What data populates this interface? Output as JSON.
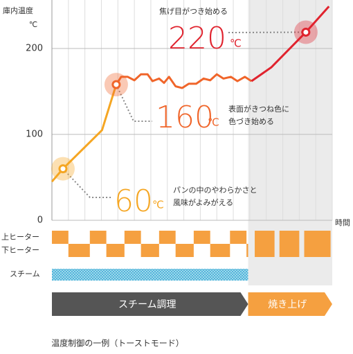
{
  "y_label": "庫内温度",
  "y_unit": "℃",
  "x_label": "時間",
  "caption": "温度制御の一例（トーストモード）",
  "chart_data": {
    "type": "line",
    "ylim": [
      0,
      250
    ],
    "yticks": [
      0,
      100,
      200
    ],
    "xlim": [
      0,
      17
    ],
    "grid": true,
    "series": [
      {
        "color": "#f5a623",
        "x": [
          0,
          0.67,
          3.04,
          3.9
        ],
        "values": [
          45,
          60,
          105,
          158
        ]
      },
      {
        "color": "#f0652a",
        "x": [
          3.9,
          4.2,
          4.6,
          5.0,
          5.4,
          5.8,
          6.1,
          6.5,
          6.8,
          7.1,
          7.5,
          7.9,
          8.3,
          8.75,
          9.2,
          9.6,
          10,
          10.4,
          10.85,
          11.25,
          11.7,
          12.1
        ],
        "values": [
          158,
          167,
          167,
          163,
          170,
          170,
          162,
          165,
          160,
          167,
          156,
          154,
          159,
          159,
          165,
          163,
          170,
          165,
          167,
          162,
          167,
          162
        ]
      },
      {
        "color": "#e0232e",
        "x": [
          12.1,
          13.3,
          15.4,
          16.8
        ],
        "values": [
          162,
          178,
          219,
          249
        ]
      }
    ],
    "annotations": [
      {
        "x": 0.67,
        "y": 60,
        "label": "60",
        "unit": "℃",
        "color": "#f5a623",
        "text": [
          "パンの中のやわらかさと",
          "風味がよみがえる"
        ]
      },
      {
        "x": 3.9,
        "y": 158,
        "label": "160",
        "unit": "℃",
        "color": "#f0652a",
        "text": [
          "表面がきつね色に",
          "色づき始める"
        ]
      },
      {
        "x": 15.4,
        "y": 219,
        "label": "220",
        "unit": "℃",
        "color": "#e0232e",
        "text": [
          "焦げ目がつき始める"
        ]
      }
    ],
    "heaters": [
      {
        "label": "上ヒーター",
        "on": [
          [
            0,
            1
          ],
          [
            2.3,
            3.3
          ],
          [
            4.4,
            5.4
          ],
          [
            6.5,
            7.5
          ],
          [
            8.6,
            9.6
          ],
          [
            10.8,
            11.8
          ]
        ]
      },
      {
        "label": "下ヒーター",
        "on": [
          [
            1,
            2.3
          ],
          [
            3.3,
            4.4
          ],
          [
            5.4,
            6.5
          ],
          [
            7.5,
            8.6
          ],
          [
            9.6,
            10.8
          ],
          [
            11.8,
            11.9
          ]
        ]
      }
    ],
    "heater_color": "#f5a040",
    "both_on": [
      [
        12.3,
        13.5
      ],
      [
        13.8,
        15.0
      ],
      [
        15.3,
        16.9
      ]
    ],
    "steam": {
      "label": "スチーム",
      "on": [
        [
          0,
          11.9
        ]
      ],
      "color": "#4ab3d9"
    },
    "shade": [
      11.9,
      17
    ],
    "phases": [
      {
        "label": "スチーム調理",
        "start": 0,
        "end": 11.9,
        "color": "#555555"
      },
      {
        "label": "焼き上げ",
        "start": 11.9,
        "end": 17,
        "color": "#f5a040"
      }
    ]
  }
}
